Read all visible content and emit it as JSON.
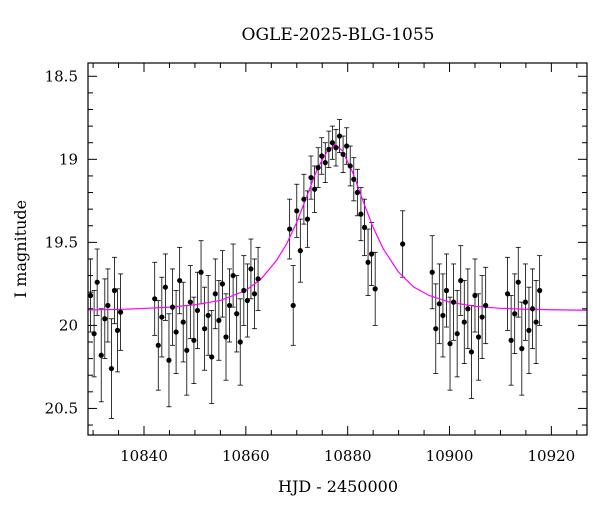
{
  "chart_data": {
    "type": "scatter",
    "title": "OGLE-2025-BLG-1055",
    "xlabel": "HJD - 2450000",
    "ylabel": "I magnitude",
    "xlim": [
      10829,
      10927
    ],
    "ylim": [
      20.66,
      18.42
    ],
    "y_inverted": true,
    "x_ticks": [
      10840,
      10860,
      10880,
      10900,
      10920
    ],
    "x_tick_labels": [
      "10840",
      "10860",
      "10880",
      "10900",
      "10920"
    ],
    "y_ticks": [
      18.5,
      19,
      19.5,
      20,
      20.5
    ],
    "y_tick_labels": [
      "18.5",
      "19",
      "19.5",
      "20",
      "20.5"
    ],
    "grid": false,
    "colors": {
      "data": "#000000",
      "model": "#ff00ff",
      "frame": "#000000"
    },
    "model": {
      "name": "",
      "baseline_mag": 19.91,
      "peak_mag": 18.91,
      "t0": 10877.6,
      "tE": 7.2,
      "x": [
        10829,
        10835,
        10840,
        10845,
        10850,
        10855,
        10860,
        10863,
        10866,
        10868,
        10870,
        10872,
        10874,
        10876,
        10877.6,
        10879,
        10881,
        10883,
        10885,
        10887,
        10890,
        10893,
        10896,
        10900,
        10905,
        10910,
        10915,
        10920,
        10927
      ],
      "y": [
        19.907,
        19.904,
        19.898,
        19.89,
        19.876,
        19.85,
        19.79,
        19.72,
        19.61,
        19.51,
        19.38,
        19.22,
        19.06,
        18.95,
        18.91,
        18.95,
        19.08,
        19.25,
        19.41,
        19.54,
        19.68,
        19.77,
        19.82,
        19.86,
        19.885,
        19.897,
        19.903,
        19.906,
        19.909
      ]
    },
    "series": [
      {
        "type": "points_with_errorbars",
        "x": [
          10829.5,
          10830.2,
          10830.8,
          10831.6,
          10832.3,
          10832.9,
          10833.6,
          10834.2,
          10834.8,
          10835.4,
          10842.1,
          10842.8,
          10843.5,
          10844.2,
          10844.9,
          10845.6,
          10846.3,
          10847.0,
          10847.7,
          10848.4,
          10849.1,
          10849.8,
          10850.5,
          10851.2,
          10851.9,
          10852.6,
          10853.3,
          10854.0,
          10854.7,
          10855.4,
          10856.1,
          10856.8,
          10857.5,
          10858.2,
          10858.9,
          10859.6,
          10860.3,
          10861.0,
          10861.7,
          10862.4,
          10868.6,
          10869.3,
          10870.0,
          10870.7,
          10871.4,
          10872.1,
          10872.8,
          10873.5,
          10874.2,
          10874.9,
          10875.6,
          10876.3,
          10877.0,
          10877.7,
          10878.4,
          10879.1,
          10879.8,
          10880.5,
          10881.2,
          10881.9,
          10882.6,
          10883.3,
          10884.0,
          10884.7,
          10885.4,
          10890.8,
          10896.6,
          10897.3,
          10898.0,
          10898.7,
          10899.4,
          10900.1,
          10900.8,
          10901.5,
          10902.2,
          10902.9,
          10903.6,
          10904.3,
          10905.0,
          10905.7,
          10906.4,
          10907.1,
          10911.4,
          10912.1,
          10912.8,
          10913.5,
          10914.2,
          10914.9,
          10915.6,
          10916.3,
          10917.0,
          10917.7
        ],
        "y": [
          19.82,
          20.05,
          19.74,
          20.18,
          19.96,
          19.88,
          20.26,
          19.79,
          20.03,
          19.92,
          19.84,
          20.12,
          19.95,
          19.77,
          20.21,
          19.89,
          20.04,
          19.73,
          19.98,
          20.15,
          19.86,
          20.09,
          19.91,
          19.68,
          20.02,
          19.94,
          20.19,
          19.81,
          19.97,
          19.75,
          20.07,
          19.88,
          19.7,
          19.93,
          20.1,
          19.79,
          19.85,
          19.66,
          19.81,
          19.72,
          19.42,
          19.88,
          19.31,
          19.55,
          19.24,
          19.36,
          19.11,
          19.18,
          19.05,
          18.98,
          19.02,
          18.94,
          18.9,
          18.93,
          18.86,
          18.97,
          18.92,
          19.04,
          19.12,
          19.2,
          19.33,
          19.41,
          19.62,
          19.57,
          19.78,
          19.51,
          19.68,
          20.02,
          19.87,
          19.94,
          19.79,
          20.11,
          19.86,
          20.05,
          19.73,
          19.98,
          19.9,
          20.16,
          19.82,
          20.07,
          19.95,
          19.88,
          19.81,
          20.09,
          19.93,
          19.74,
          20.14,
          19.86,
          20.03,
          19.9,
          19.98,
          19.79
        ],
        "err": [
          0.22,
          0.26,
          0.2,
          0.28,
          0.24,
          0.22,
          0.3,
          0.2,
          0.25,
          0.23,
          0.22,
          0.27,
          0.24,
          0.2,
          0.28,
          0.23,
          0.25,
          0.2,
          0.24,
          0.27,
          0.22,
          0.26,
          0.23,
          0.19,
          0.25,
          0.24,
          0.28,
          0.21,
          0.24,
          0.2,
          0.26,
          0.22,
          0.19,
          0.23,
          0.26,
          0.21,
          0.22,
          0.18,
          0.21,
          0.19,
          0.18,
          0.24,
          0.16,
          0.19,
          0.15,
          0.17,
          0.13,
          0.14,
          0.12,
          0.11,
          0.12,
          0.11,
          0.1,
          0.11,
          0.1,
          0.11,
          0.11,
          0.12,
          0.13,
          0.14,
          0.16,
          0.17,
          0.2,
          0.19,
          0.22,
          0.2,
          0.22,
          0.27,
          0.24,
          0.25,
          0.22,
          0.28,
          0.23,
          0.26,
          0.21,
          0.25,
          0.24,
          0.28,
          0.22,
          0.26,
          0.25,
          0.23,
          0.22,
          0.27,
          0.24,
          0.21,
          0.28,
          0.23,
          0.26,
          0.24,
          0.25,
          0.21
        ]
      }
    ]
  }
}
